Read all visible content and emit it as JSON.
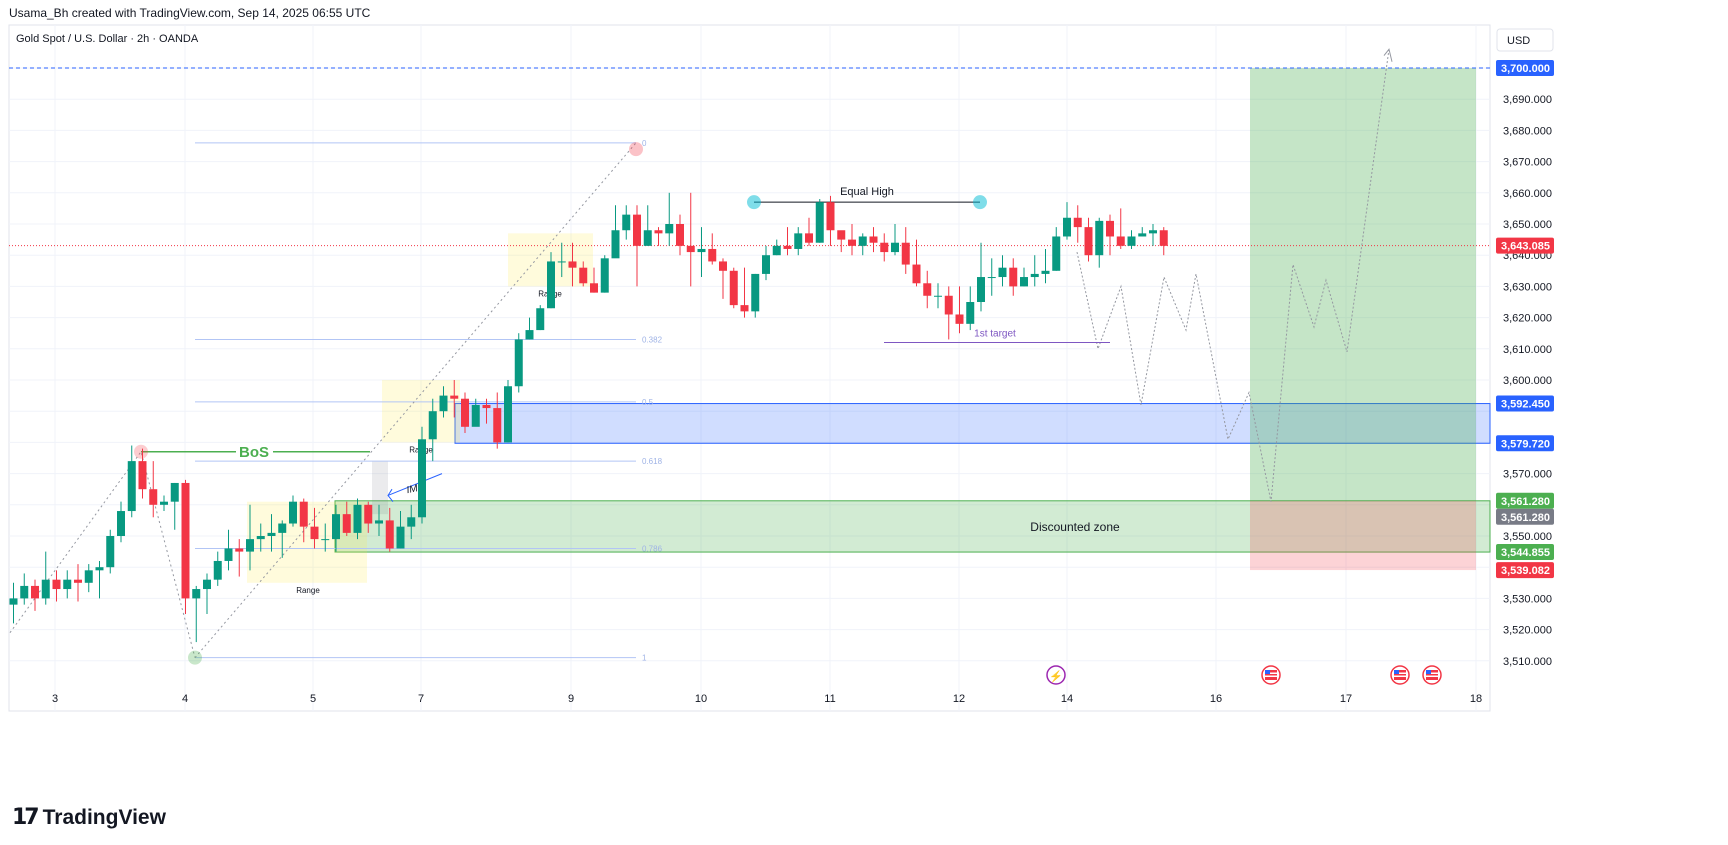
{
  "header": {
    "attribution": "Usama_Bh created with TradingView.com, Sep 14, 2025 06:55 UTC"
  },
  "footer": {
    "brand": "TradingView"
  },
  "chart_data": {
    "type": "candlestick",
    "title": "Gold Spot / U.S. Dollar · 2h · OANDA",
    "currency": "USD",
    "ylim": [
      3503,
      3710
    ],
    "y_ticks": [
      "3,510.000",
      "3,520.000",
      "3,530.000",
      "3,550.000",
      "3,570.000",
      "3,600.000",
      "3,610.000",
      "3,620.000",
      "3,630.000",
      "3,640.000",
      "3,650.000",
      "3,660.000",
      "3,670.000",
      "3,680.000",
      "3,690.000"
    ],
    "x_ticks": [
      "3",
      "4",
      "5",
      "7",
      "9",
      "10",
      "11",
      "12",
      "14",
      "16",
      "17",
      "18"
    ],
    "candles": [
      [
        3528,
        3530,
        3522,
        3535
      ],
      [
        3530,
        3534,
        3528,
        3538
      ],
      [
        3534,
        3530,
        3526,
        3536
      ],
      [
        3530,
        3536,
        3528,
        3545
      ],
      [
        3536,
        3533,
        3529,
        3539
      ],
      [
        3533,
        3536,
        3530,
        3539
      ],
      [
        3536,
        3535,
        3529,
        3541
      ],
      [
        3535,
        3539,
        3532,
        3541
      ],
      [
        3539,
        3540,
        3530,
        3542
      ],
      [
        3540,
        3550,
        3538,
        3552
      ],
      [
        3550,
        3558,
        3548,
        3561
      ],
      [
        3558,
        3574,
        3556,
        3579
      ],
      [
        3574,
        3565,
        3562,
        3578
      ],
      [
        3565,
        3560,
        3556,
        3574
      ],
      [
        3560,
        3561,
        3558,
        3563
      ],
      [
        3561,
        3567,
        3552,
        3567
      ],
      [
        3567,
        3530,
        3525,
        3568
      ],
      [
        3530,
        3533,
        3516,
        3534
      ],
      [
        3533,
        3536,
        3525,
        3538
      ],
      [
        3536,
        3542,
        3534,
        3545
      ],
      [
        3542,
        3546,
        3539,
        3552
      ],
      [
        3546,
        3545,
        3537,
        3549
      ],
      [
        3545,
        3549,
        3539,
        3560
      ],
      [
        3549,
        3550,
        3545,
        3554
      ],
      [
        3550,
        3551,
        3545,
        3557
      ],
      [
        3551,
        3554,
        3543,
        3555
      ],
      [
        3554,
        3561,
        3553,
        3563
      ],
      [
        3561,
        3553,
        3548,
        3562
      ],
      [
        3553,
        3549,
        3546,
        3559
      ],
      [
        3549,
        3549,
        3545,
        3554
      ],
      [
        3549,
        3557,
        3545,
        3560
      ],
      [
        3557,
        3551,
        3550,
        3561
      ],
      [
        3551,
        3560,
        3549,
        3562
      ],
      [
        3560,
        3554,
        3551,
        3561
      ],
      [
        3554,
        3555,
        3550,
        3560
      ],
      [
        3555,
        3546,
        3545,
        3559
      ],
      [
        3546,
        3553,
        3546,
        3558
      ],
      [
        3553,
        3556,
        3549,
        3560
      ],
      [
        3556,
        3581,
        3554,
        3585
      ],
      [
        3581,
        3590,
        3574,
        3594
      ],
      [
        3590,
        3595,
        3588,
        3598
      ],
      [
        3595,
        3594,
        3588,
        3600
      ],
      [
        3594,
        3585,
        3583,
        3596
      ],
      [
        3585,
        3592,
        3586,
        3594
      ],
      [
        3592,
        3591,
        3586,
        3594
      ],
      [
        3591,
        3580,
        3578,
        3596
      ],
      [
        3580,
        3598,
        3580,
        3600
      ],
      [
        3598,
        3613,
        3596,
        3615
      ],
      [
        3613,
        3616,
        3613,
        3620
      ],
      [
        3616,
        3623,
        3616,
        3624
      ],
      [
        3623,
        3638,
        3623,
        3641
      ],
      [
        3638,
        3638,
        3633,
        3644
      ],
      [
        3638,
        3636,
        3630,
        3644
      ],
      [
        3636,
        3631,
        3630,
        3638
      ],
      [
        3631,
        3628,
        3628,
        3636
      ],
      [
        3628,
        3639,
        3628,
        3640
      ],
      [
        3639,
        3648,
        3640,
        3656
      ],
      [
        3648,
        3653,
        3645,
        3656
      ],
      [
        3653,
        3643,
        3630,
        3656
      ],
      [
        3643,
        3648,
        3643,
        3656
      ],
      [
        3648,
        3647,
        3643,
        3649
      ],
      [
        3647,
        3650,
        3643,
        3660
      ],
      [
        3650,
        3643,
        3640,
        3653
      ],
      [
        3643,
        3641,
        3630,
        3660
      ],
      [
        3641,
        3642,
        3633,
        3649
      ],
      [
        3642,
        3638,
        3637,
        3647
      ],
      [
        3638,
        3635,
        3626,
        3639
      ],
      [
        3635,
        3624,
        3623,
        3636
      ],
      [
        3624,
        3622,
        3620,
        3636
      ],
      [
        3622,
        3634,
        3620,
        3634
      ],
      [
        3634,
        3640,
        3632,
        3643
      ],
      [
        3640,
        3643,
        3640,
        3645
      ],
      [
        3643,
        3642,
        3640,
        3649
      ],
      [
        3642,
        3647,
        3640,
        3649
      ],
      [
        3647,
        3644,
        3643,
        3652
      ],
      [
        3644,
        3657,
        3644,
        3658
      ],
      [
        3657,
        3648,
        3643,
        3659
      ],
      [
        3648,
        3645,
        3641,
        3647
      ],
      [
        3645,
        3643,
        3640,
        3650
      ],
      [
        3643,
        3646,
        3640,
        3647
      ],
      [
        3646,
        3644,
        3641,
        3649
      ],
      [
        3644,
        3641,
        3638,
        3647
      ],
      [
        3641,
        3644,
        3640,
        3650
      ],
      [
        3644,
        3637,
        3634,
        3649
      ],
      [
        3637,
        3631,
        3630,
        3645
      ],
      [
        3631,
        3627,
        3623,
        3635
      ],
      [
        3627,
        3627,
        3623,
        3631
      ],
      [
        3627,
        3621,
        3613,
        3630
      ],
      [
        3621,
        3618,
        3615,
        3630
      ],
      [
        3618,
        3625,
        3616,
        3630
      ],
      [
        3625,
        3633,
        3622,
        3644
      ],
      [
        3633,
        3633,
        3627,
        3639
      ],
      [
        3633,
        3636,
        3630,
        3640
      ],
      [
        3636,
        3630,
        3627,
        3639
      ],
      [
        3630,
        3633,
        3630,
        3636
      ],
      [
        3633,
        3634,
        3630,
        3640
      ],
      [
        3634,
        3635,
        3631,
        3642
      ],
      [
        3635,
        3646,
        3635,
        3649
      ],
      [
        3646,
        3652,
        3645,
        3657
      ],
      [
        3652,
        3649,
        3644,
        3656
      ],
      [
        3649,
        3640,
        3638,
        3652
      ],
      [
        3640,
        3651,
        3636,
        3652
      ],
      [
        3651,
        3646,
        3640,
        3653
      ],
      [
        3646,
        3643,
        3642,
        3655
      ],
      [
        3643,
        3646,
        3642,
        3648
      ],
      [
        3646,
        3647,
        3646,
        3649
      ],
      [
        3647,
        3648,
        3643,
        3650
      ],
      [
        3648,
        3643,
        3640,
        3649
      ]
    ],
    "current_price": 3643.085,
    "price_labels": [
      {
        "value": 3700.0,
        "text": "3,700.000",
        "color": "#2962ff"
      },
      {
        "value": 3643.085,
        "text": "3,643.085",
        "color": "#f23645"
      },
      {
        "value": 3592.45,
        "text": "3,592.450",
        "color": "#2962ff"
      },
      {
        "value": 3579.72,
        "text": "3,579.720",
        "color": "#2962ff"
      },
      {
        "value": 3561.28,
        "text": "3,561.280",
        "color": "#4caf50"
      },
      {
        "value": 3561.28,
        "text": "3,561.280",
        "color": "#787b86"
      },
      {
        "value": 3544.855,
        "text": "3,544.855",
        "color": "#4caf50"
      },
      {
        "value": 3539.082,
        "text": "3,539.082",
        "color": "#f23645"
      }
    ],
    "fib_levels": [
      {
        "ratio": "0",
        "value": 3676
      },
      {
        "ratio": "0.382",
        "value": 3613
      },
      {
        "ratio": "0.5",
        "value": 3593
      },
      {
        "ratio": "0.618",
        "value": 3574
      },
      {
        "ratio": "0.786",
        "value": 3546
      },
      {
        "ratio": "1",
        "value": 3511
      }
    ],
    "annotations": {
      "bos": "BoS",
      "equal_high": "Equal High",
      "first_target": "1st target",
      "imb": "IMB",
      "discounted_zone": "Discounted zone",
      "range": "Range"
    },
    "colors": {
      "up": "#089981",
      "down": "#f23645",
      "zone_blue": "#2962ff",
      "zone_green": "#4caf50"
    }
  }
}
